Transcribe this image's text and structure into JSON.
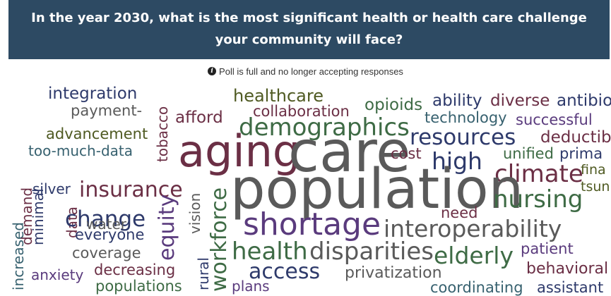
{
  "header": {
    "question": "In the year 2030, what is the most significant health or health care challenge your community will face?"
  },
  "status": {
    "icon": "info-icon",
    "text": "Poll is full and no longer accepting responses"
  },
  "colors": {
    "header_bg": "#2d4a63",
    "navy": "#2e3a6b",
    "green": "#3e6b45",
    "maroon": "#6b2f45",
    "olive": "#4f5a22",
    "purple": "#5a3b7d",
    "gray": "#5a5a5a",
    "teal": "#37616f"
  },
  "words": {
    "integration": "integration",
    "payment": "payment-",
    "advancement": "advancement",
    "too_much_data": "too-much-data",
    "silver": "silver",
    "insurance": "insurance",
    "tobacco": "tobacco",
    "afford": "afford",
    "healthcare": "healthcare",
    "collaboration": "collaboration",
    "opioids": "opioids",
    "ability": "ability",
    "diverse": "diverse",
    "antibio": "antibio",
    "technology": "technology",
    "successful": "successful",
    "demographics": "demographics",
    "resources": "resources",
    "deductib": "deductib",
    "aging": "aging",
    "care": "care",
    "cost": "cost",
    "high": "high",
    "unified": "unified",
    "prima": "prima",
    "climate": "climate",
    "fina": "fina",
    "tsun": "tsun",
    "population": "population",
    "demand": "demand",
    "increased": "increased",
    "minimal": "minimal",
    "change": "change",
    "equity": "equity",
    "vision": "vision",
    "workforce": "workforce",
    "need": "need",
    "nursing": "nursing",
    "water": "water",
    "data": "data",
    "everyone": "everyone",
    "shortage": "shortage",
    "interoperability": "interoperability",
    "coverage": "coverage",
    "health": "health",
    "disparities": "disparities",
    "elderly": "elderly",
    "patient": "patient",
    "anxiety": "anxiety",
    "decreasing": "decreasing",
    "rural": "rural",
    "access": "access",
    "privatization": "privatization",
    "behavioral": "behavioral",
    "populations": "populations",
    "plans": "plans",
    "coordinating": "coordinating",
    "assistant": "assistant"
  }
}
